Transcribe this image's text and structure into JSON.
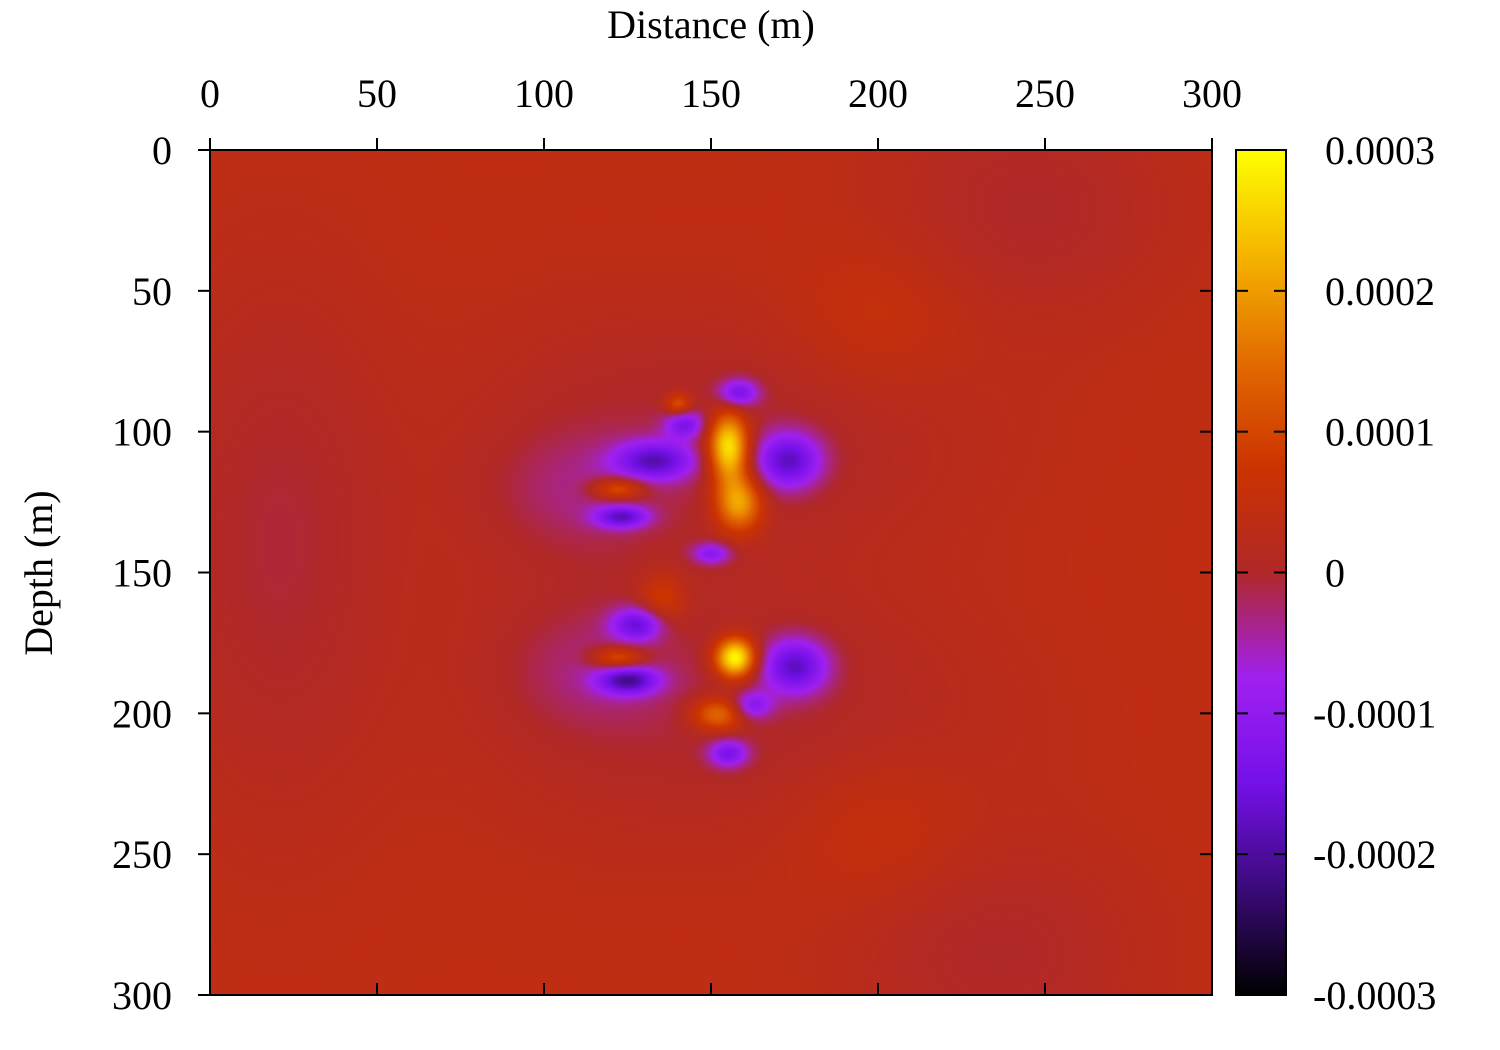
{
  "chart_data": {
    "type": "heatmap",
    "title": "",
    "xlabel": "Distance (m)",
    "ylabel": "Depth (m)",
    "xlim": [
      0,
      300
    ],
    "ylim": [
      0,
      300
    ],
    "x_axis_position": "top",
    "y_axis_inverted": true,
    "x_ticks": [
      "0",
      "50",
      "100",
      "150",
      "200",
      "250",
      "300"
    ],
    "y_ticks": [
      "0",
      "50",
      "100",
      "150",
      "200",
      "250",
      "300"
    ],
    "colorbar": {
      "range": [
        -0.0003,
        0.0003
      ],
      "ticks": [
        "0.0003",
        "0.0002",
        "0.0001",
        "0",
        "-0.0001",
        "-0.0002",
        "-0.0003"
      ],
      "colors": [
        "#000000",
        "#3a0a78",
        "#7410e8",
        "#a020f0",
        "#b02828",
        "#cc3300",
        "#e26b00",
        "#f5b400",
        "#ffff00"
      ]
    },
    "background_value": 4e-05,
    "features": [
      {
        "x": 160,
        "y": 100,
        "sx": 70,
        "sy": 45,
        "v": -4e-05
      },
      {
        "x": 165,
        "y": 200,
        "sx": 70,
        "sy": 45,
        "v": -4e-05
      },
      {
        "x": 20,
        "y": 140,
        "sx": 35,
        "sy": 95,
        "v": -4.5e-05
      },
      {
        "x": 245,
        "y": 20,
        "sx": 45,
        "sy": 40,
        "v": -4e-05
      },
      {
        "x": 235,
        "y": 285,
        "sx": 45,
        "sy": 40,
        "v": -4e-05
      },
      {
        "x": 200,
        "y": 60,
        "sx": 28,
        "sy": 28,
        "v": 3e-05
      },
      {
        "x": 200,
        "y": 240,
        "sx": 28,
        "sy": 28,
        "v": 3e-05
      },
      {
        "x": 110,
        "y": 150,
        "sx": 40,
        "sy": 80,
        "v": -2e-05
      },
      {
        "x": 155,
        "y": 105,
        "sx": 6,
        "sy": 12,
        "v": 0.00028
      },
      {
        "x": 158,
        "y": 125,
        "sx": 7,
        "sy": 10,
        "v": 0.0002
      },
      {
        "x": 157,
        "y": 180,
        "sx": 6,
        "sy": 7,
        "v": 0.0003
      },
      {
        "x": 152,
        "y": 200,
        "sx": 8,
        "sy": 6,
        "v": 0.00015
      },
      {
        "x": 140,
        "y": 90,
        "sx": 4,
        "sy": 4,
        "v": 0.00012
      },
      {
        "x": 122,
        "y": 120,
        "sx": 8,
        "sy": 4,
        "v": 0.00014
      },
      {
        "x": 122,
        "y": 180,
        "sx": 8,
        "sy": 4,
        "v": 0.00014
      },
      {
        "x": 135,
        "y": 160,
        "sx": 7,
        "sy": 10,
        "v": 8e-05
      },
      {
        "x": 158,
        "y": 86,
        "sx": 6,
        "sy": 5,
        "v": -0.00015
      },
      {
        "x": 173,
        "y": 110,
        "sx": 10,
        "sy": 10,
        "v": -0.00018
      },
      {
        "x": 133,
        "y": 110,
        "sx": 12,
        "sy": 7,
        "v": -0.00017
      },
      {
        "x": 142,
        "y": 97,
        "sx": 6,
        "sy": 5,
        "v": -0.00013
      },
      {
        "x": 123,
        "y": 130,
        "sx": 8,
        "sy": 4,
        "v": -0.00016
      },
      {
        "x": 150,
        "y": 143,
        "sx": 6,
        "sy": 4,
        "v": -0.00012
      },
      {
        "x": 128,
        "y": 168,
        "sx": 8,
        "sy": 6,
        "v": -0.00016
      },
      {
        "x": 175,
        "y": 183,
        "sx": 10,
        "sy": 10,
        "v": -0.00018
      },
      {
        "x": 125,
        "y": 188,
        "sx": 9,
        "sy": 5,
        "v": -0.00018
      },
      {
        "x": 162,
        "y": 197,
        "sx": 6,
        "sy": 5,
        "v": -0.00012
      },
      {
        "x": 155,
        "y": 214,
        "sx": 6,
        "sy": 5,
        "v": -0.00014
      },
      {
        "x": 110,
        "y": 120,
        "sx": 25,
        "sy": 20,
        "v": -4e-05
      },
      {
        "x": 115,
        "y": 185,
        "sx": 25,
        "sy": 20,
        "v": -4e-05
      }
    ]
  }
}
